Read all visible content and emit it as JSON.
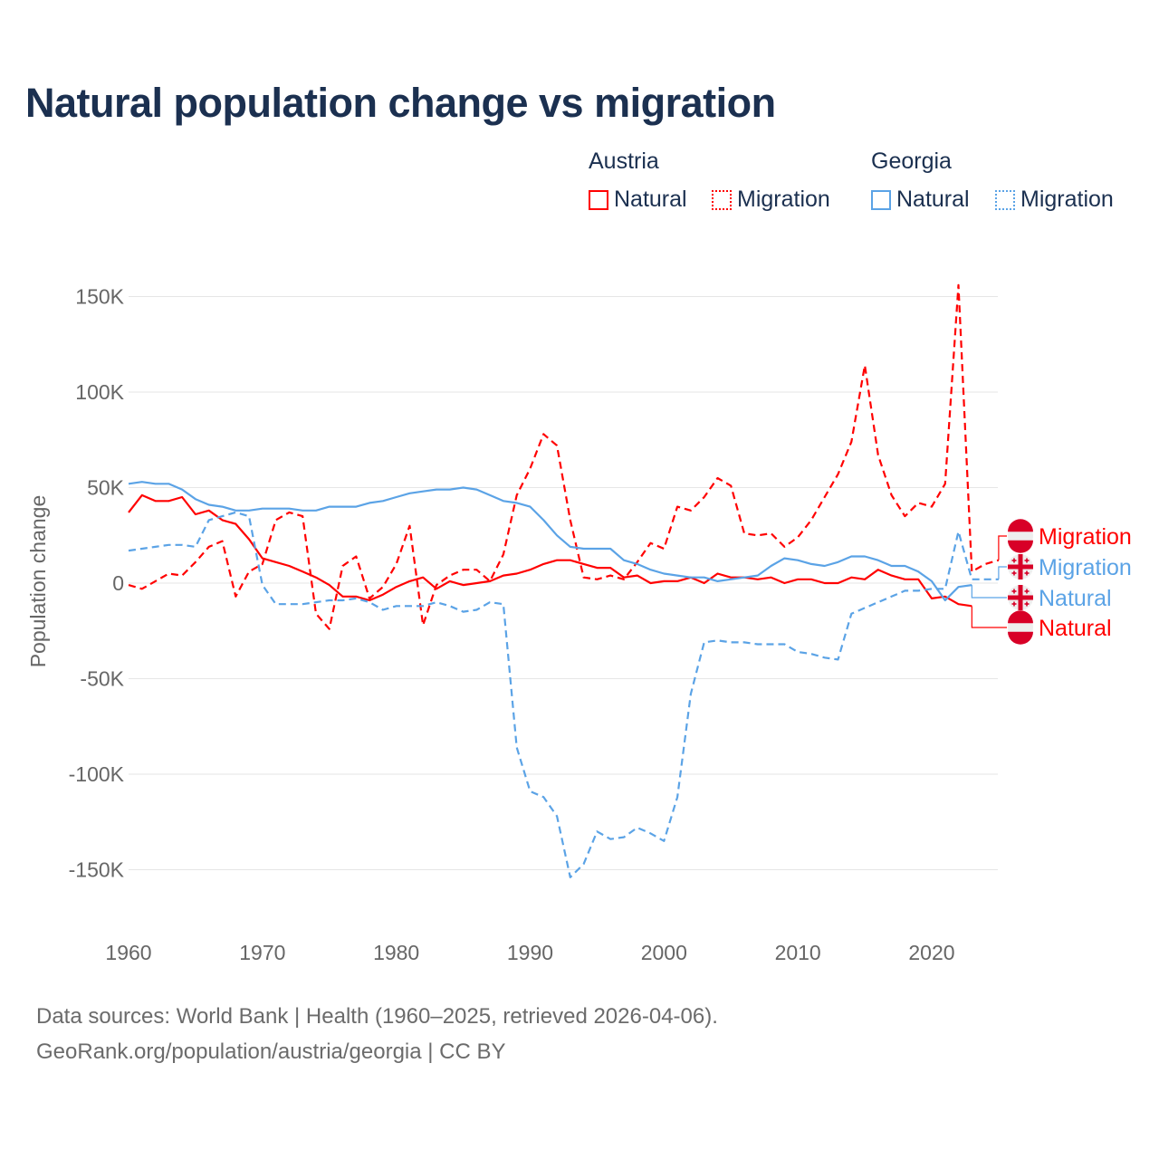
{
  "colors": {
    "austria": "#ff0000",
    "georgia": "#5ba3e6",
    "grid": "#e6e6e6"
  },
  "chart_data": {
    "type": "line",
    "title": "Natural population change vs migration",
    "xlabel": "",
    "ylabel": "Population change",
    "xlim": [
      1960,
      2025
    ],
    "ylim": [
      -175,
      165
    ],
    "y_unit": "thousands",
    "xticks": [
      {
        "v": 1960,
        "label": "1960"
      },
      {
        "v": 1970,
        "label": "1970"
      },
      {
        "v": 1980,
        "label": "1980"
      },
      {
        "v": 1990,
        "label": "1990"
      },
      {
        "v": 2000,
        "label": "2000"
      },
      {
        "v": 2010,
        "label": "2010"
      },
      {
        "v": 2020,
        "label": "2020"
      }
    ],
    "yticks": [
      {
        "v": 150,
        "label": "150K"
      },
      {
        "v": 100,
        "label": "100K"
      },
      {
        "v": 50,
        "label": "50K"
      },
      {
        "v": 0,
        "label": "0"
      },
      {
        "v": -50,
        "label": "-50K"
      },
      {
        "v": -100,
        "label": "-100K"
      },
      {
        "v": -150,
        "label": "-150K"
      }
    ],
    "grid": true,
    "legend": {
      "placement": "top-right",
      "groups": [
        {
          "label": "Austria",
          "items": [
            "Natural",
            "Migration"
          ]
        },
        {
          "label": "Georgia",
          "items": [
            "Natural",
            "Migration"
          ]
        }
      ]
    },
    "series": [
      {
        "name": "Austria Natural",
        "country": "austria",
        "kind": "natural",
        "end_label": "Natural",
        "start": 1960,
        "values": [
          37,
          46,
          43,
          43,
          45,
          36,
          38,
          33,
          31,
          23,
          13,
          11,
          9,
          6,
          3,
          -1,
          -7,
          -7,
          -9,
          -6,
          -2,
          1,
          3,
          -3,
          1,
          -1,
          0,
          1,
          4,
          5,
          7,
          10,
          12,
          12,
          10,
          8,
          8,
          3,
          4,
          0,
          1,
          1,
          3,
          0,
          5,
          3,
          3,
          2,
          3,
          0,
          2,
          2,
          0,
          0,
          3,
          2,
          7,
          4,
          2,
          2,
          -8,
          -7,
          -11,
          -12
        ]
      },
      {
        "name": "Austria Migration",
        "country": "austria",
        "kind": "migration",
        "end_label": "Migration",
        "start": 1960,
        "values": [
          -1,
          -3,
          1,
          5,
          4,
          11,
          19,
          22,
          -7,
          6,
          10,
          33,
          37,
          35,
          -16,
          -24,
          9,
          14,
          -8,
          -2,
          10,
          30,
          -22,
          -1,
          4,
          7,
          7,
          1,
          15,
          46,
          60,
          78,
          72,
          33,
          3,
          2,
          4,
          2,
          11,
          21,
          18,
          40,
          38,
          45,
          55,
          51,
          26,
          25,
          26,
          19,
          24,
          33,
          45,
          57,
          74,
          114,
          67,
          46,
          35,
          42,
          40,
          52,
          156,
          6,
          10,
          12
        ]
      },
      {
        "name": "Georgia Natural",
        "country": "georgia",
        "kind": "natural",
        "end_label": "Natural",
        "start": 1960,
        "values": [
          52,
          53,
          52,
          52,
          49,
          44,
          41,
          40,
          38,
          38,
          39,
          39,
          39,
          38,
          38,
          40,
          40,
          40,
          42,
          43,
          45,
          47,
          48,
          49,
          49,
          50,
          49,
          46,
          43,
          42,
          40,
          33,
          25,
          19,
          18,
          18,
          18,
          12,
          10,
          7,
          5,
          4,
          3,
          3,
          1,
          2,
          3,
          4,
          9,
          13,
          12,
          10,
          9,
          11,
          14,
          14,
          12,
          9,
          9,
          6,
          1,
          -9,
          -2,
          -1
        ]
      },
      {
        "name": "Georgia Migration",
        "country": "georgia",
        "kind": "migration",
        "end_label": "Migration",
        "start": 1960,
        "values": [
          17,
          18,
          19,
          20,
          20,
          19,
          33,
          35,
          37,
          35,
          -1,
          -11,
          -11,
          -11,
          -10,
          -9,
          -9,
          -8,
          -10,
          -14,
          -12,
          -12,
          -12,
          -10,
          -12,
          -15,
          -14,
          -10,
          -11,
          -86,
          -109,
          -112,
          -122,
          -154,
          -147,
          -130,
          -134,
          -133,
          -128,
          -131,
          -135,
          -112,
          -58,
          -31,
          -30,
          -31,
          -31,
          -32,
          -32,
          -32,
          -36,
          -37,
          -39,
          -40,
          -16,
          -13,
          -10,
          -7,
          -4,
          -4,
          -3,
          -3,
          27,
          2,
          2,
          2
        ]
      }
    ]
  },
  "footer": {
    "line1": "Data sources: World Bank | Health (1960–2025, retrieved 2026-04-06).",
    "line2": "GeoRank.org/population/austria/georgia | CC BY"
  }
}
